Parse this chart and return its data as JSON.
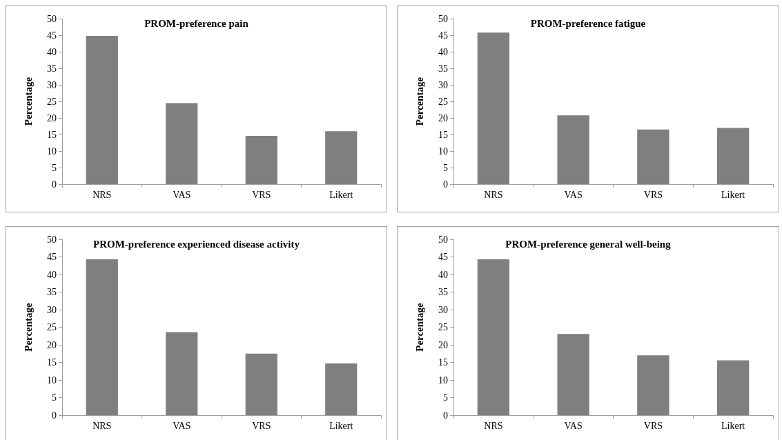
{
  "chart_data": [
    {
      "type": "bar",
      "title": "PROM-preference pain",
      "ylabel": "Percentage",
      "categories": [
        "NRS",
        "VAS",
        "VRS",
        "Likert"
      ],
      "values": [
        44.8,
        24.5,
        14.6,
        16.0
      ],
      "color": "#7f7f7f",
      "ylim": [
        0,
        50
      ],
      "yticks": [
        0,
        5,
        10,
        15,
        20,
        25,
        30,
        35,
        40,
        45,
        50
      ],
      "grid": false
    },
    {
      "type": "bar",
      "title": "PROM-preference fatigue",
      "ylabel": "Percentage",
      "categories": [
        "NRS",
        "VAS",
        "VRS",
        "Likert"
      ],
      "values": [
        45.8,
        20.8,
        16.5,
        17.0
      ],
      "color": "#7f7f7f",
      "ylim": [
        0,
        50
      ],
      "yticks": [
        0,
        5,
        10,
        15,
        20,
        25,
        30,
        35,
        40,
        45,
        50
      ],
      "grid": false
    },
    {
      "type": "bar",
      "title": "PROM-preference experienced disease activity",
      "ylabel": "Percentage",
      "categories": [
        "NRS",
        "VAS",
        "VRS",
        "Likert"
      ],
      "values": [
        44.3,
        23.6,
        17.5,
        14.7
      ],
      "color": "#7f7f7f",
      "ylim": [
        0,
        50
      ],
      "yticks": [
        0,
        5,
        10,
        15,
        20,
        25,
        30,
        35,
        40,
        45,
        50
      ],
      "grid": false
    },
    {
      "type": "bar",
      "title": "PROM-preference general well-being",
      "ylabel": "Percentage",
      "categories": [
        "NRS",
        "VAS",
        "VRS",
        "Likert"
      ],
      "values": [
        44.3,
        23.1,
        17.0,
        15.6
      ],
      "color": "#7f7f7f",
      "ylim": [
        0,
        50
      ],
      "yticks": [
        0,
        5,
        10,
        15,
        20,
        25,
        30,
        35,
        40,
        45,
        50
      ],
      "grid": false
    }
  ]
}
